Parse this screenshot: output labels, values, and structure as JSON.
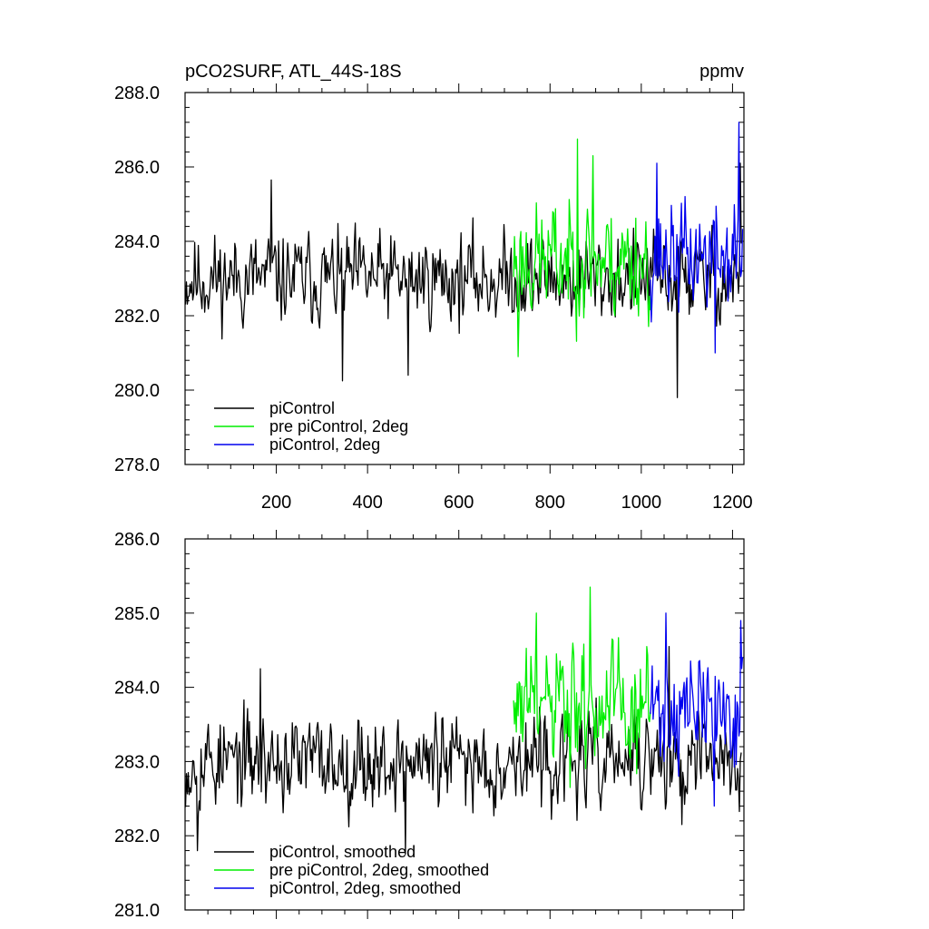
{
  "colors": {
    "piControl": "#000000",
    "prePiControl2deg": "#00ee00",
    "piControl2deg": "#0000ee",
    "axis": "#000000"
  },
  "chart_data": [
    {
      "type": "line",
      "title_left": "pCO2SURF, ATL_44S-18S",
      "title_right": "ppmv",
      "xlim": [
        0,
        1225
      ],
      "ylim": [
        278,
        288
      ],
      "x_ticks": [
        200,
        400,
        600,
        800,
        1000,
        1200
      ],
      "x_tick_labels": [
        "200",
        "400",
        "600",
        "800",
        "1000",
        "1200"
      ],
      "y_ticks": [
        278,
        280,
        282,
        284,
        286,
        288
      ],
      "y_tick_labels": [
        "278.0",
        "280.0",
        "282.0",
        "284.0",
        "286.0",
        "288.0"
      ],
      "legend_position": "bottom-left",
      "series": [
        {
          "name": "piControl",
          "color": "#000000",
          "x_range": [
            1,
            1220
          ],
          "mean": 283.0,
          "amp": 0.85,
          "seed": 11,
          "extremes": [
            [
              190,
              285.65
            ],
            [
              345,
              280.25
            ],
            [
              490,
              280.4
            ],
            [
              1080,
              279.8
            ],
            [
              1218,
              286.1
            ],
            [
              1213,
              282.6
            ]
          ]
        },
        {
          "name": "pre piControl, 2deg",
          "color": "#00ee00",
          "x_range": [
            720,
            1020
          ],
          "mean": 283.5,
          "amp": 1.1,
          "seed": 23,
          "extremes": [
            [
              860,
              286.75
            ],
            [
              730,
              280.9
            ],
            [
              895,
              286.3
            ]
          ]
        },
        {
          "name": "piControl, 2deg",
          "color": "#0000ee",
          "x_range": [
            1020,
            1222
          ],
          "mean": 283.6,
          "amp": 1.05,
          "seed": 37,
          "extremes": [
            [
              1215,
              287.2
            ],
            [
              1163,
              281.0
            ],
            [
              1035,
              286.1
            ]
          ]
        }
      ],
      "legend": [
        "piControl",
        "pre piControl, 2deg",
        "piControl, 2deg"
      ]
    },
    {
      "type": "line",
      "xlim": [
        0,
        1225
      ],
      "ylim": [
        281,
        286
      ],
      "x_ticks": [
        200,
        400,
        600,
        800,
        1000,
        1200
      ],
      "y_ticks": [
        281,
        282,
        283,
        284,
        285,
        286
      ],
      "y_tick_labels": [
        "281.0",
        "282.0",
        "283.0",
        "284.0",
        "285.0",
        "286.0"
      ],
      "legend_position": "bottom-left",
      "series": [
        {
          "name": "piControl, smoothed",
          "color": "#000000",
          "x_range": [
            1,
            1220
          ],
          "mean": 283.0,
          "amp": 0.45,
          "seed": 53,
          "extremes": [
            [
              165,
              284.25
            ],
            [
              484,
              281.75
            ],
            [
              28,
              281.8
            ],
            [
              1090,
              282.15
            ],
            [
              1062,
              284.55
            ]
          ]
        },
        {
          "name": "pre piControl, 2deg, smoothed",
          "color": "#00ee00",
          "x_range": [
            720,
            1020
          ],
          "mean": 283.7,
          "amp": 0.6,
          "seed": 61,
          "extremes": [
            [
              888,
              285.35
            ],
            [
              770,
              285.0
            ],
            [
              845,
              282.65
            ]
          ]
        },
        {
          "name": "piControl, 2deg, smoothed",
          "color": "#0000ee",
          "x_range": [
            1020,
            1222
          ],
          "mean": 283.7,
          "amp": 0.55,
          "seed": 71,
          "extremes": [
            [
              1055,
              285.0
            ],
            [
              1160,
              282.4
            ],
            [
              1218,
              284.9
            ]
          ]
        }
      ],
      "legend": [
        "piControl, smoothed",
        "pre piControl, 2deg, smoothed",
        "piControl, 2deg, smoothed"
      ]
    }
  ]
}
